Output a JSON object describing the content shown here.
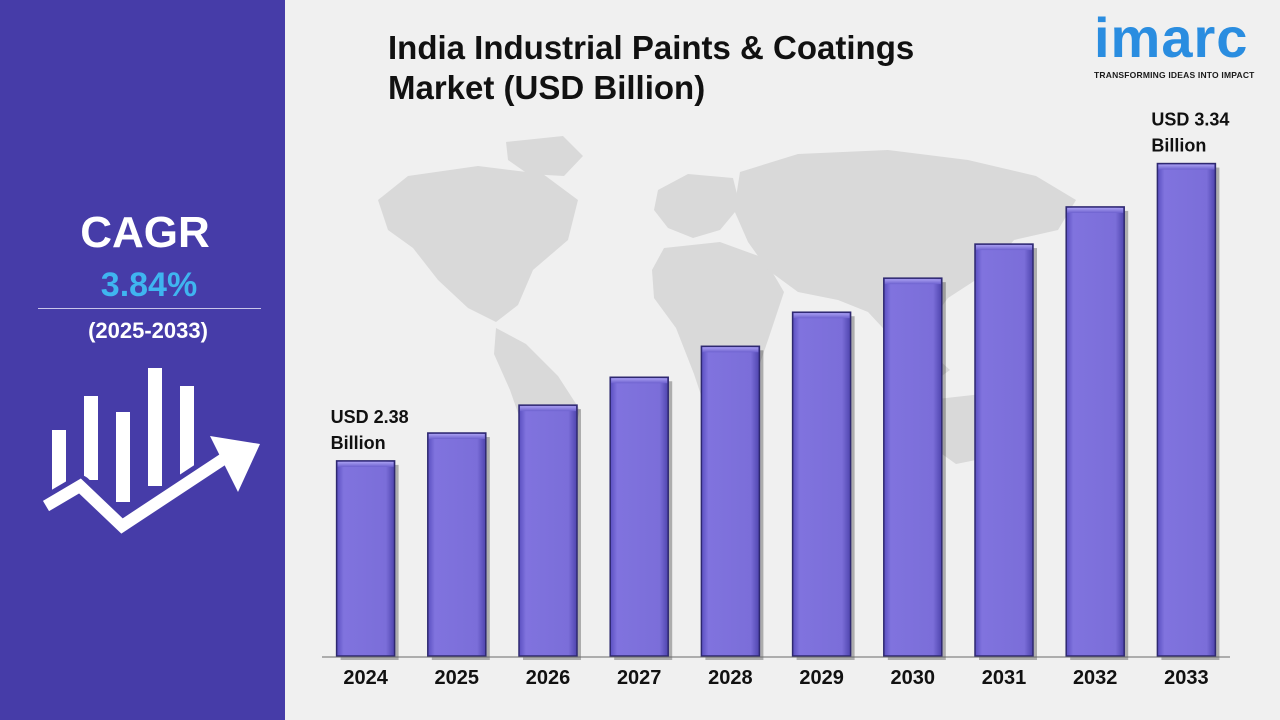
{
  "sidebar": {
    "cagr_label": "CAGR",
    "cagr_value": "3.84%",
    "period": "(2025-2033)",
    "icon": "growth-chart-arrow-icon"
  },
  "header": {
    "title": "India Industrial Paints & Coatings Market (USD Billion)"
  },
  "logo": {
    "name": "imarc",
    "tagline": "TRANSFORMING IDEAS INTO IMPACT"
  },
  "colors": {
    "sidebar": "#463ca8",
    "bar": "#7d70dc",
    "cagr_value": "#3fb5f0",
    "logo": "#2a8de0",
    "background": "#f0f0f0",
    "map": "#d9d9d9"
  },
  "chart_data": {
    "type": "bar",
    "title": "India Industrial Paints & Coatings Market (USD Billion)",
    "categories": [
      "2024",
      "2025",
      "2026",
      "2027",
      "2028",
      "2029",
      "2030",
      "2031",
      "2032",
      "2033"
    ],
    "values": [
      2.38,
      2.47,
      2.56,
      2.65,
      2.75,
      2.86,
      2.97,
      3.08,
      3.2,
      3.34
    ],
    "ylim": [
      1.75,
      3.5
    ],
    "grid": false,
    "annotations": [
      {
        "category": "2024",
        "lines": [
          "USD 2.38",
          "Billion"
        ]
      },
      {
        "category": "2033",
        "lines": [
          "USD 3.34",
          "Billion"
        ]
      }
    ]
  }
}
